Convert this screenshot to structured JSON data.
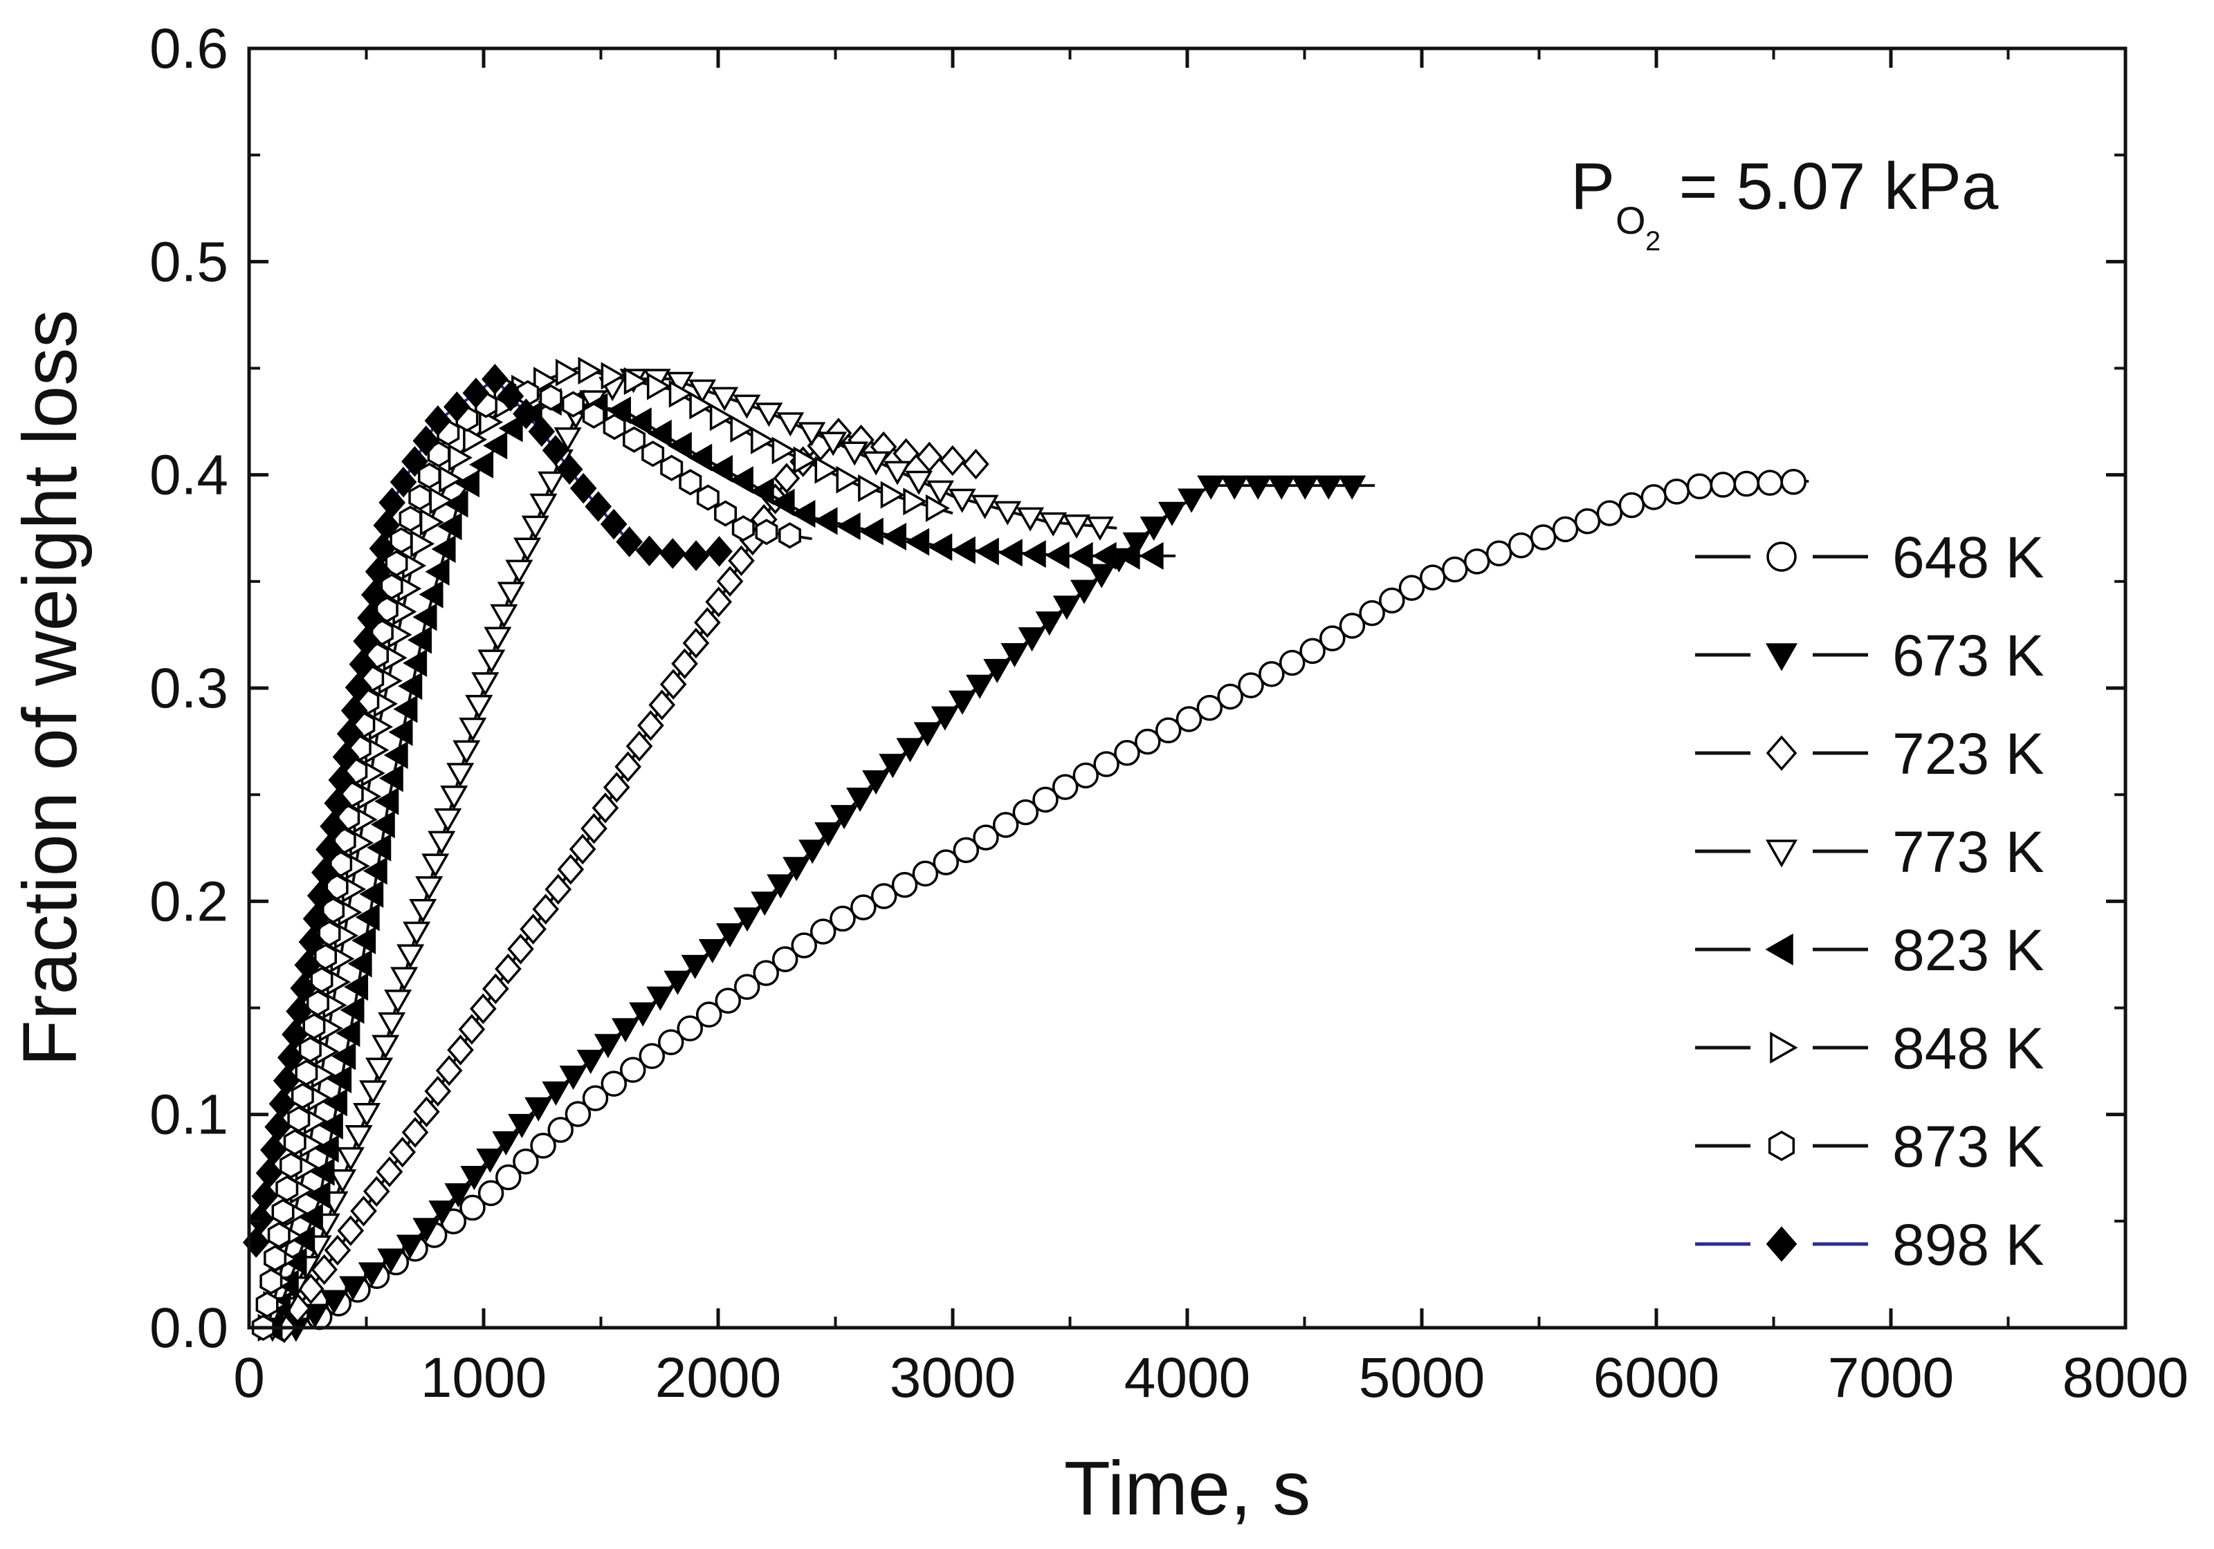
{
  "chart_data": {
    "type": "scatter",
    "title": "",
    "annotation": {
      "prefix": "P",
      "subscript_main": "O",
      "subscript_index": "2",
      "suffix": " = 5.07 kPa"
    },
    "xlabel": "Time, s",
    "ylabel": "Fraction of weight loss",
    "xlim": [
      0,
      8000
    ],
    "ylim": [
      0,
      0.6
    ],
    "x_ticks": [
      "0",
      "1000",
      "2000",
      "3000",
      "4000",
      "5000",
      "6000",
      "7000",
      "8000"
    ],
    "y_ticks": [
      "0.0",
      "0.1",
      "0.2",
      "0.3",
      "0.4",
      "0.5",
      "0.6"
    ],
    "legend_position": "right",
    "series": [
      {
        "name": "648 K",
        "marker": "circle",
        "filled": false,
        "line_color": "#111111",
        "points": [
          [
            300,
            0.005
          ],
          [
            1000,
            0.06
          ],
          [
            1500,
            0.11
          ],
          [
            2000,
            0.15
          ],
          [
            2500,
            0.19
          ],
          [
            3000,
            0.22
          ],
          [
            3500,
            0.255
          ],
          [
            4000,
            0.285
          ],
          [
            4500,
            0.315
          ],
          [
            5000,
            0.35
          ],
          [
            5500,
            0.37
          ],
          [
            6000,
            0.39
          ],
          [
            6200,
            0.395
          ],
          [
            6650,
            0.397
          ]
        ]
      },
      {
        "name": "673 K",
        "marker": "triangle-down",
        "filled": true,
        "line_color": "#111111",
        "points": [
          [
            200,
            0.0
          ],
          [
            700,
            0.04
          ],
          [
            1200,
            0.1
          ],
          [
            1700,
            0.15
          ],
          [
            2200,
            0.2
          ],
          [
            2700,
            0.26
          ],
          [
            3200,
            0.31
          ],
          [
            3600,
            0.35
          ],
          [
            3900,
            0.38
          ],
          [
            4100,
            0.395
          ],
          [
            4500,
            0.395
          ],
          [
            4800,
            0.395
          ]
        ]
      },
      {
        "name": "723 K",
        "marker": "diamond",
        "filled": false,
        "line_color": "#111111",
        "points": [
          [
            150,
            0.0
          ],
          [
            400,
            0.04
          ],
          [
            700,
            0.09
          ],
          [
            1000,
            0.15
          ],
          [
            1400,
            0.22
          ],
          [
            1800,
            0.3
          ],
          [
            2100,
            0.36
          ],
          [
            2300,
            0.4
          ],
          [
            2500,
            0.42
          ],
          [
            2800,
            0.41
          ],
          [
            3100,
            0.405
          ]
        ]
      },
      {
        "name": "773 K",
        "marker": "triangle-down-open",
        "filled": false,
        "line_color": "#111111",
        "points": [
          [
            100,
            0.0
          ],
          [
            300,
            0.04
          ],
          [
            500,
            0.1
          ],
          [
            700,
            0.18
          ],
          [
            900,
            0.26
          ],
          [
            1100,
            0.34
          ],
          [
            1300,
            0.4
          ],
          [
            1400,
            0.43
          ],
          [
            1600,
            0.445
          ],
          [
            1800,
            0.445
          ],
          [
            2200,
            0.43
          ],
          [
            2600,
            0.41
          ],
          [
            3000,
            0.39
          ],
          [
            3400,
            0.378
          ],
          [
            3700,
            0.375
          ]
        ]
      },
      {
        "name": "823 K",
        "marker": "triangle-left",
        "filled": true,
        "line_color": "#111111",
        "points": [
          [
            100,
            0.0
          ],
          [
            300,
            0.06
          ],
          [
            450,
            0.15
          ],
          [
            600,
            0.25
          ],
          [
            750,
            0.33
          ],
          [
            900,
            0.39
          ],
          [
            1100,
            0.42
          ],
          [
            1300,
            0.435
          ],
          [
            1600,
            0.43
          ],
          [
            1900,
            0.41
          ],
          [
            2400,
            0.38
          ],
          [
            3000,
            0.365
          ],
          [
            3500,
            0.362
          ],
          [
            3950,
            0.362
          ]
        ]
      },
      {
        "name": "848 K",
        "marker": "triangle-right",
        "filled": false,
        "line_color": "#111111",
        "points": [
          [
            80,
            0.0
          ],
          [
            250,
            0.08
          ],
          [
            400,
            0.18
          ],
          [
            550,
            0.28
          ],
          [
            700,
            0.36
          ],
          [
            900,
            0.41
          ],
          [
            1150,
            0.44
          ],
          [
            1400,
            0.45
          ],
          [
            1800,
            0.44
          ],
          [
            2200,
            0.415
          ],
          [
            2600,
            0.395
          ],
          [
            3000,
            0.382
          ]
        ]
      },
      {
        "name": "873 K",
        "marker": "hexagon",
        "filled": false,
        "line_color": "#111111",
        "points": [
          [
            60,
            0.0
          ],
          [
            200,
            0.09
          ],
          [
            350,
            0.19
          ],
          [
            500,
            0.29
          ],
          [
            650,
            0.37
          ],
          [
            850,
            0.42
          ],
          [
            1100,
            0.44
          ],
          [
            1350,
            0.435
          ],
          [
            1600,
            0.42
          ],
          [
            1900,
            0.395
          ],
          [
            2100,
            0.375
          ],
          [
            2400,
            0.37
          ]
        ]
      },
      {
        "name": "898 K",
        "marker": "diamond-filled",
        "filled": true,
        "line_color": "#2b2c8c",
        "points": [
          [
            30,
            0.04
          ],
          [
            150,
            0.11
          ],
          [
            300,
            0.2
          ],
          [
            450,
            0.29
          ],
          [
            600,
            0.385
          ],
          [
            800,
            0.425
          ],
          [
            1050,
            0.445
          ],
          [
            1250,
            0.42
          ],
          [
            1450,
            0.39
          ],
          [
            1650,
            0.365
          ],
          [
            1900,
            0.362
          ],
          [
            2050,
            0.365
          ]
        ]
      }
    ]
  }
}
